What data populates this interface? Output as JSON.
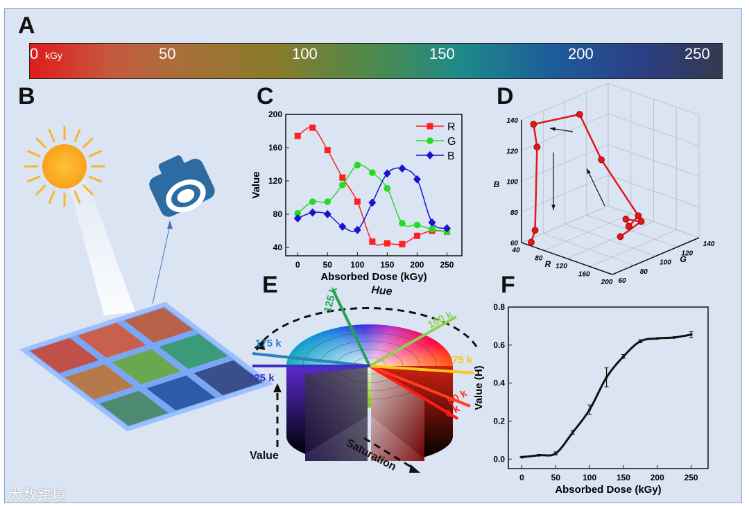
{
  "panels": {
    "a": "A",
    "b": "B",
    "c": "C",
    "d": "D",
    "e": "E",
    "f": "F"
  },
  "colorbar": {
    "ticks": [
      "0",
      "50",
      "100",
      "150",
      "200",
      "250"
    ],
    "unit": "kGy"
  },
  "panel_e": {
    "hue_label": "Hue",
    "saturation_label": "Saturation",
    "value_label": "Value",
    "dose_lines": [
      {
        "label": "0 k",
        "color": "#ff1a1a"
      },
      {
        "label": "50 k",
        "color": "#ff3d1a"
      },
      {
        "label": "75 k",
        "color": "#ffc61a"
      },
      {
        "label": "100 k",
        "color": "#8fd14f"
      },
      {
        "label": "125 k",
        "color": "#1fa552"
      },
      {
        "label": "175 k",
        "color": "#2f7fc1"
      },
      {
        "label": "225 k",
        "color": "#3a2fc1"
      }
    ]
  },
  "panel_b": {
    "tile_colors": [
      "#c0504a",
      "#c9604e",
      "#b8624c",
      "#b67a4a",
      "#6aa84f",
      "#3a9a7a",
      "#4e8a70",
      "#2f5aa8",
      "#3a4f8a"
    ]
  },
  "watermark": "大数跨境",
  "chart_data": [
    {
      "id": "C",
      "type": "line",
      "title": "",
      "xlabel": "Absorbed Dose (kGy)",
      "ylabel": "Value",
      "x": [
        0,
        25,
        50,
        75,
        100,
        125,
        150,
        175,
        200,
        225,
        250
      ],
      "xlim": [
        -20,
        275
      ],
      "ylim": [
        30,
        200
      ],
      "xticks": [
        0,
        50,
        100,
        150,
        200,
        250
      ],
      "yticks": [
        40,
        80,
        120,
        160,
        200
      ],
      "legend": "top-right",
      "series": [
        {
          "name": "R",
          "color": "#ff2020",
          "marker": "square",
          "values": [
            174,
            184,
            157,
            124,
            95,
            47,
            45,
            44,
            54,
            60,
            59
          ]
        },
        {
          "name": "G",
          "color": "#22dd22",
          "marker": "circle",
          "values": [
            81,
            95,
            95,
            115,
            139,
            130,
            111,
            69,
            67,
            62,
            59
          ]
        },
        {
          "name": "B",
          "color": "#1515d0",
          "marker": "diamond",
          "values": [
            75,
            82,
            80,
            65,
            61,
            94,
            129,
            135,
            122,
            70,
            63
          ]
        }
      ]
    },
    {
      "id": "D",
      "type": "scatter3d",
      "xlabel": "R",
      "ylabel": "G",
      "zlabel": "B",
      "xticks": [
        40,
        80,
        120,
        160,
        200
      ],
      "yticks": [
        60,
        80,
        100,
        120,
        140
      ],
      "zticks": [
        60,
        80,
        100,
        120,
        140
      ],
      "color": "#e01818",
      "points": [
        [
          174,
          81,
          75
        ],
        [
          184,
          95,
          82
        ],
        [
          157,
          95,
          80
        ],
        [
          124,
          115,
          65
        ],
        [
          95,
          139,
          61
        ],
        [
          47,
          130,
          94
        ],
        [
          45,
          111,
          129
        ],
        [
          44,
          69,
          135
        ],
        [
          54,
          67,
          122
        ],
        [
          60,
          62,
          70
        ],
        [
          59,
          59,
          63
        ]
      ]
    },
    {
      "id": "F",
      "type": "line",
      "xlabel": "Absorbed Dose (kGy)",
      "ylabel": "Value (H)",
      "x": [
        0,
        25,
        50,
        75,
        100,
        125,
        150,
        175,
        200,
        225,
        250
      ],
      "values": [
        0.01,
        0.02,
        0.03,
        0.14,
        0.26,
        0.43,
        0.54,
        0.62,
        0.635,
        0.64,
        0.655
      ],
      "errors": [
        0.004,
        0.004,
        0.008,
        0.01,
        0.025,
        0.05,
        0.01,
        0.008,
        0.003,
        0.003,
        0.015
      ],
      "xlim": [
        -20,
        275
      ],
      "ylim": [
        -0.05,
        0.8
      ],
      "xticks": [
        0,
        50,
        100,
        150,
        200,
        250
      ],
      "yticks": [
        "0.0",
        "0.2",
        "0.4",
        "0.6",
        "0.8"
      ]
    }
  ]
}
